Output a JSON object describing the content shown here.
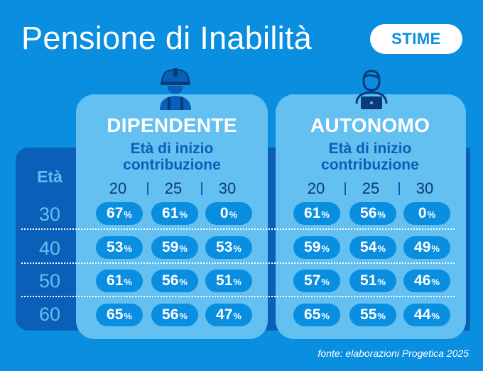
{
  "title": "Pensione di Inabilità",
  "badge": "STIME",
  "age_header": "Età",
  "ages": [
    "30",
    "40",
    "50",
    "60"
  ],
  "pct_symbol": "%",
  "dipendente": {
    "title": "DIPENDENTE",
    "subtitle_line1": "Età di inizio",
    "subtitle_line2": "contribuzione",
    "columns": [
      "20",
      "25",
      "30"
    ],
    "rows": [
      [
        "67",
        "61",
        "0"
      ],
      [
        "53",
        "59",
        "53"
      ],
      [
        "61",
        "56",
        "51"
      ],
      [
        "65",
        "56",
        "47"
      ]
    ],
    "icon": "worker-hardhat-icon"
  },
  "autonomo": {
    "title": "AUTONOMO",
    "subtitle_line1": "Età di inizio",
    "subtitle_line2": "contribuzione",
    "columns": [
      "20",
      "25",
      "30"
    ],
    "rows": [
      [
        "61",
        "56",
        "0"
      ],
      [
        "59",
        "54",
        "49"
      ],
      [
        "57",
        "51",
        "46"
      ],
      [
        "65",
        "55",
        "44"
      ]
    ],
    "icon": "worker-laptop-icon"
  },
  "source": "fonte: elaborazioni Progetica 2025",
  "colors": {
    "background": "#0a8ee0",
    "card": "#63c0f0",
    "dark_panel": "#0b5fb8",
    "pill": "#0a8ee0"
  }
}
